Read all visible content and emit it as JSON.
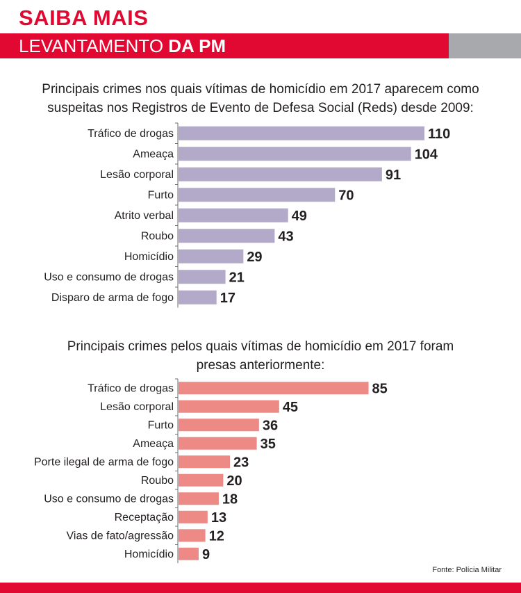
{
  "header": {
    "kicker": "SAIBA MAIS",
    "banner_light": "LEVANTAMENTO",
    "banner_bold": "DA PM"
  },
  "colors": {
    "brand_red": "#e10932",
    "banner_gray": "#a7a9ac",
    "chart1_bar": "#b3a9c8",
    "chart2_bar": "#ee8a86"
  },
  "chart_data": [
    {
      "type": "bar",
      "orientation": "horizontal",
      "title_line1": "Principais crimes nos quais vítimas de homicídio em 2017 aparecem como",
      "title_line2": "suspeitas nos Registros de Evento de Defesa Social (Reds) desde 2009:",
      "categories": [
        "Tráfico de drogas",
        "Ameaça",
        "Lesão corporal",
        "Furto",
        "Atrito verbal",
        "Roubo",
        "Homicídio",
        "Uso e consumo de drogas",
        "Disparo de arma de fogo"
      ],
      "values": [
        110,
        104,
        91,
        70,
        49,
        43,
        29,
        21,
        17
      ],
      "xlim": [
        0,
        110
      ],
      "grid": false
    },
    {
      "type": "bar",
      "orientation": "horizontal",
      "title_line1": "Principais crimes pelos quais vítimas de homicídio em 2017 foram",
      "title_line2": "presas anteriormente:",
      "categories": [
        "Tráfico de drogas",
        "Lesão corporal",
        "Furto",
        "Ameaça",
        "Porte ilegal de arma de fogo",
        "Roubo",
        "Uso e consumo de drogas",
        "Receptação",
        "Vias de fato/agressão",
        "Homicídio"
      ],
      "values": [
        85,
        45,
        36,
        35,
        23,
        20,
        18,
        13,
        12,
        9
      ],
      "xlim": [
        0,
        110
      ],
      "grid": false
    }
  ],
  "source": "Fonte: Polícia Militar"
}
